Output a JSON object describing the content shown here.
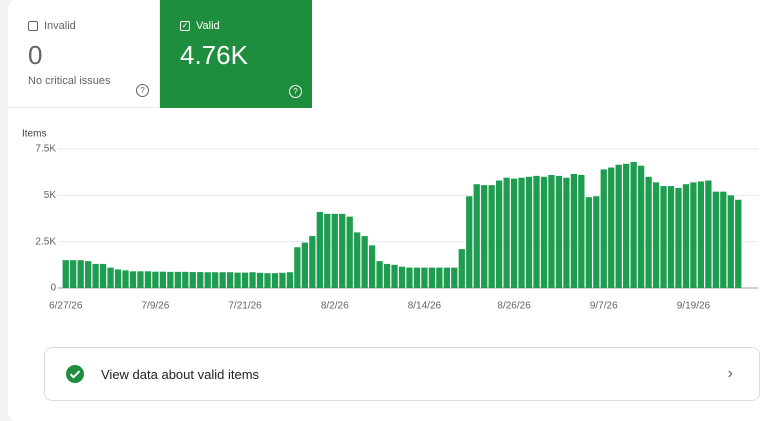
{
  "tabs": [
    {
      "label": "Invalid",
      "value": "0",
      "caption": "No critical issues"
    },
    {
      "label": "Valid",
      "value": "4.76K"
    }
  ],
  "chart_data": {
    "type": "bar",
    "y_label": "Items",
    "color": "#1e9c50",
    "categories": [
      "6/27/26",
      null,
      null,
      null,
      null,
      null,
      null,
      null,
      null,
      null,
      null,
      null,
      "7/9/26",
      null,
      null,
      null,
      null,
      null,
      null,
      null,
      null,
      null,
      null,
      null,
      "7/21/26",
      null,
      null,
      null,
      null,
      null,
      null,
      null,
      null,
      null,
      null,
      null,
      "8/2/26",
      null,
      null,
      null,
      null,
      null,
      null,
      null,
      null,
      null,
      null,
      null,
      "8/14/26",
      null,
      null,
      null,
      null,
      null,
      null,
      null,
      null,
      null,
      null,
      null,
      "8/26/26",
      null,
      null,
      null,
      null,
      null,
      null,
      null,
      null,
      null,
      null,
      null,
      "9/7/26",
      null,
      null,
      null,
      null,
      null,
      null,
      null,
      null,
      null,
      null,
      null,
      "9/19/26",
      null,
      null,
      null,
      null,
      null,
      null
    ],
    "values": [
      1500,
      1500,
      1500,
      1450,
      1300,
      1300,
      1100,
      1000,
      950,
      900,
      900,
      900,
      880,
      880,
      870,
      870,
      870,
      860,
      860,
      850,
      850,
      850,
      850,
      830,
      830,
      850,
      820,
      800,
      800,
      820,
      850,
      2200,
      2450,
      2800,
      4100,
      4000,
      4000,
      4000,
      3850,
      3000,
      2800,
      2300,
      1450,
      1300,
      1250,
      1150,
      1100,
      1100,
      1100,
      1100,
      1100,
      1100,
      1100,
      2100,
      4950,
      5600,
      5550,
      5550,
      5800,
      5950,
      5900,
      5950,
      6000,
      6050,
      6000,
      6100,
      6050,
      5950,
      6150,
      6100,
      4900,
      4950,
      6400,
      6500,
      6650,
      6700,
      6800,
      6600,
      6000,
      5700,
      5500,
      5500,
      5400,
      5600,
      5700,
      5750,
      5800,
      5200,
      5200,
      5000,
      4760
    ],
    "ylim": [
      0,
      7500
    ],
    "yticks": [
      0,
      {
        "value": 2500,
        "label": "2.5K"
      },
      {
        "value": 5000,
        "label": "5K"
      },
      {
        "value": 7500,
        "label": "7.5K"
      }
    ],
    "grid": true
  },
  "action": {
    "label": "View data about valid items"
  }
}
